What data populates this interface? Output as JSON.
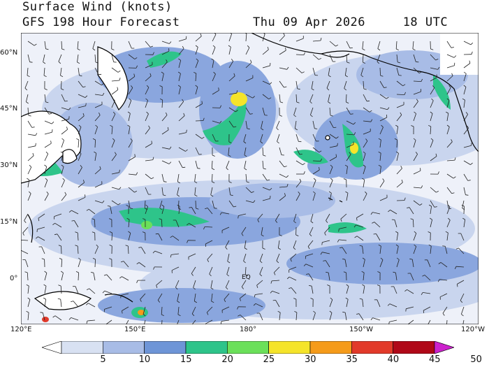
{
  "title": "Surface Wind (knots)",
  "subtitle": "GFS 198 Hour Forecast",
  "valid_time": "Thu 09 Apr 2026     18 UTC",
  "lat_labels": [
    "60°N",
    "45°N",
    "30°N",
    "15°N",
    "0°"
  ],
  "lon_labels": [
    "120°E",
    "150°E",
    "180°",
    "150°W",
    "120°W"
  ],
  "map_annotations": [
    "EQ"
  ],
  "legend": {
    "labels": [
      "5",
      "10",
      "15",
      "20",
      "25",
      "30",
      "35",
      "40",
      "45",
      "50"
    ],
    "colors": [
      "#ffffff",
      "#d8e1f2",
      "#a8bce6",
      "#6e95d7",
      "#2ec48a",
      "#6be05a",
      "#f5e42a",
      "#f59b1a",
      "#e23a2a",
      "#b00818",
      "#cc22cc"
    ]
  },
  "colors": {
    "ocean_calm": "#f4f6fb",
    "light_wind": "#c9d5ee",
    "moderate_wind": "#8aa6de",
    "land_outline": "#000000"
  }
}
